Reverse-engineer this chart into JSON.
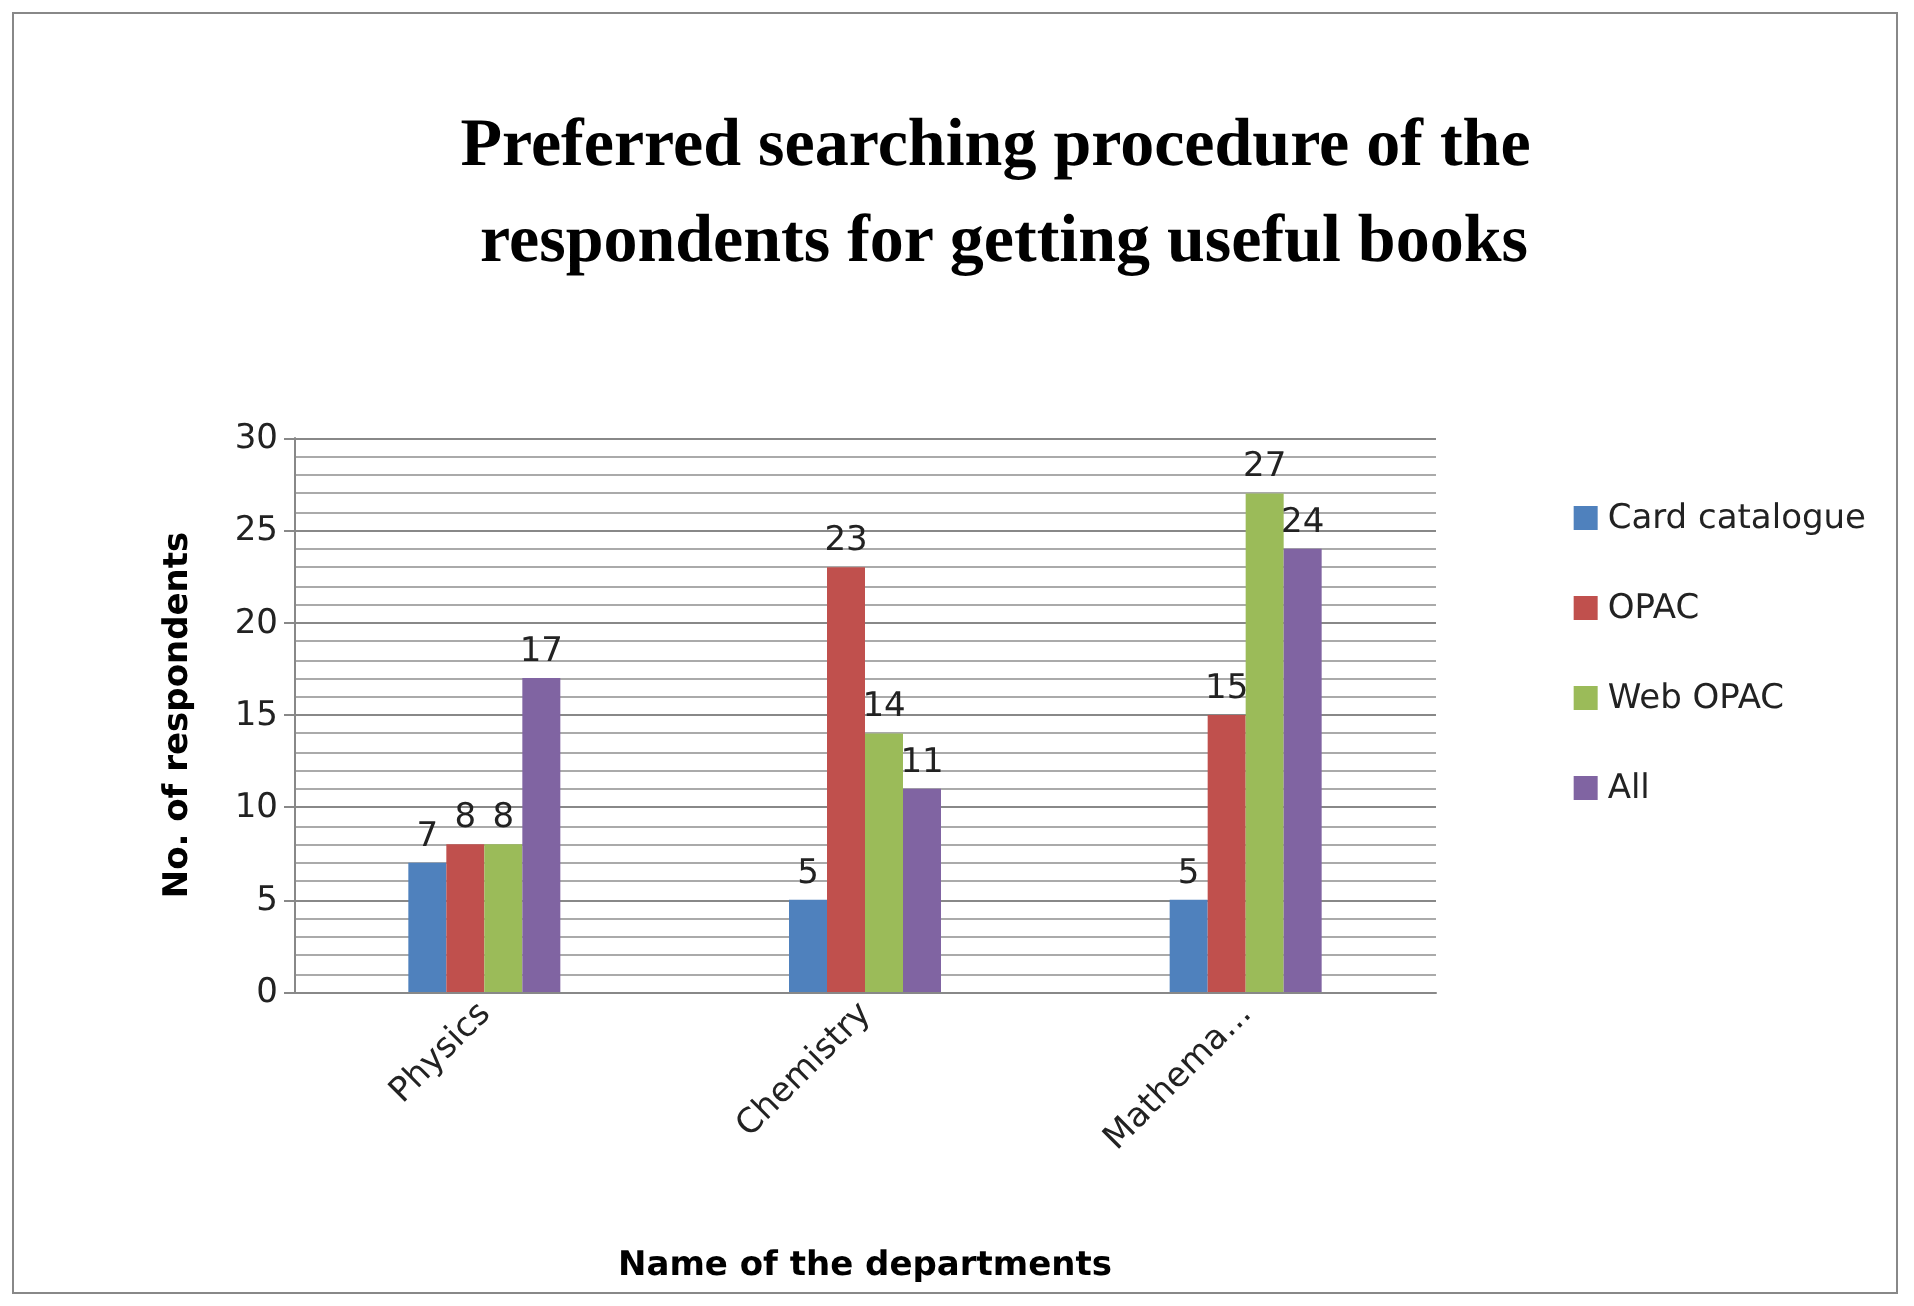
{
  "chart_data": {
    "type": "bar",
    "title": "Preferred searching procedure of the respondents for getting useful books",
    "xlabel": "Name of the departments",
    "ylabel": "No. of respondents",
    "categories": [
      "Physics",
      "Chemistry",
      "Mathema..."
    ],
    "series": [
      {
        "name": "Card catalogue",
        "color": "#4f81bd",
        "values": [
          7,
          5,
          5
        ]
      },
      {
        "name": "OPAC",
        "color": "#c0504d",
        "values": [
          8,
          23,
          15
        ]
      },
      {
        "name": "Web OPAC",
        "color": "#9bbb59",
        "values": [
          8,
          14,
          27
        ]
      },
      {
        "name": "All",
        "color": "#8064a2",
        "values": [
          17,
          11,
          24
        ]
      }
    ],
    "ylim": [
      0,
      30
    ],
    "yticks": [
      0,
      5,
      10,
      15,
      20,
      25,
      30
    ],
    "grid": "y",
    "legend": "right",
    "data_labels": true
  }
}
